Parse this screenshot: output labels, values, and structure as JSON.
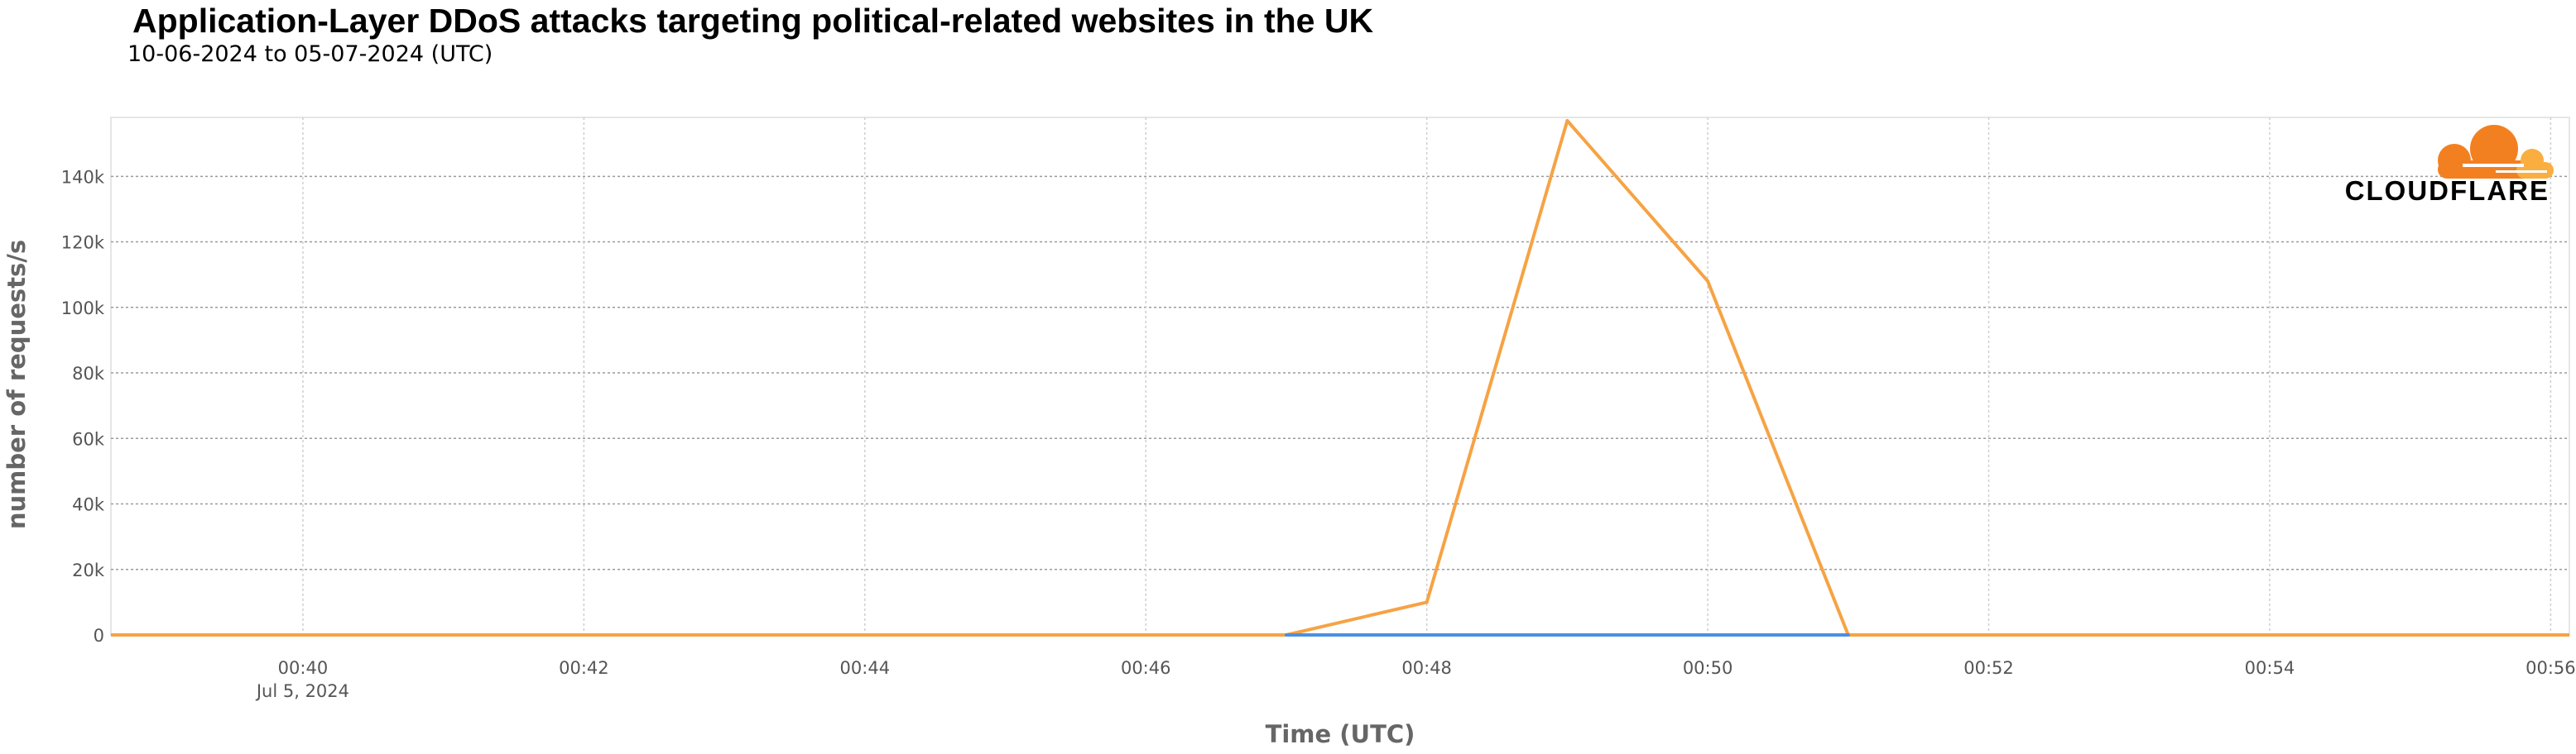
{
  "chart_data": {
    "type": "line",
    "title": "Application-Layer DDoS attacks targeting political-related websites in the UK",
    "subtitle": "10-06-2024 to 05-07-2024 (UTC)",
    "xlabel": "Time (UTC)",
    "ylabel": "number of requests/s",
    "x_unit": "minute (UTC), Jul 5, 2024",
    "xlim": [
      "00:38:38",
      "00:56:08"
    ],
    "ylim": [
      0,
      158000
    ],
    "x_ticks": [
      {
        "time": "00:40",
        "label": "00:40",
        "sublabel": "Jul 5, 2024"
      },
      {
        "time": "00:42",
        "label": "00:42",
        "sublabel": ""
      },
      {
        "time": "00:44",
        "label": "00:44",
        "sublabel": ""
      },
      {
        "time": "00:46",
        "label": "00:46",
        "sublabel": ""
      },
      {
        "time": "00:48",
        "label": "00:48",
        "sublabel": ""
      },
      {
        "time": "00:50",
        "label": "00:50",
        "sublabel": ""
      },
      {
        "time": "00:52",
        "label": "00:52",
        "sublabel": ""
      },
      {
        "time": "00:54",
        "label": "00:54",
        "sublabel": ""
      },
      {
        "time": "00:56",
        "label": "00:56",
        "sublabel": ""
      }
    ],
    "y_ticks": [
      {
        "value": 0,
        "label": "0"
      },
      {
        "value": 20000,
        "label": "20k"
      },
      {
        "value": 40000,
        "label": "40k"
      },
      {
        "value": 60000,
        "label": "60k"
      },
      {
        "value": 80000,
        "label": "80k"
      },
      {
        "value": 100000,
        "label": "100k"
      },
      {
        "value": 120000,
        "label": "120k"
      },
      {
        "value": 140000,
        "label": "140k"
      }
    ],
    "grid": true,
    "series": [
      {
        "color": "#f6a344",
        "x": [
          "00:38",
          "00:39",
          "00:40",
          "00:41",
          "00:42",
          "00:43",
          "00:44",
          "00:45",
          "00:46",
          "00:47",
          "00:48",
          "00:49",
          "00:50",
          "00:51",
          "00:52",
          "00:53",
          "00:54",
          "00:55",
          "00:56",
          "00:57"
        ],
        "values": [
          0,
          0,
          0,
          0,
          0,
          0,
          0,
          0,
          0,
          0,
          10000,
          157000,
          108000,
          0,
          0,
          0,
          0,
          0,
          0,
          0
        ]
      },
      {
        "color": "#4a90e2",
        "x": [
          "00:47",
          "00:48",
          "00:49",
          "00:50",
          "00:51"
        ],
        "values": [
          0,
          0,
          0,
          0,
          0
        ]
      }
    ]
  },
  "brand": {
    "logo_text": "CLOUDFLARE",
    "colors": {
      "orange": "#f38020",
      "light_orange": "#faae40"
    }
  }
}
